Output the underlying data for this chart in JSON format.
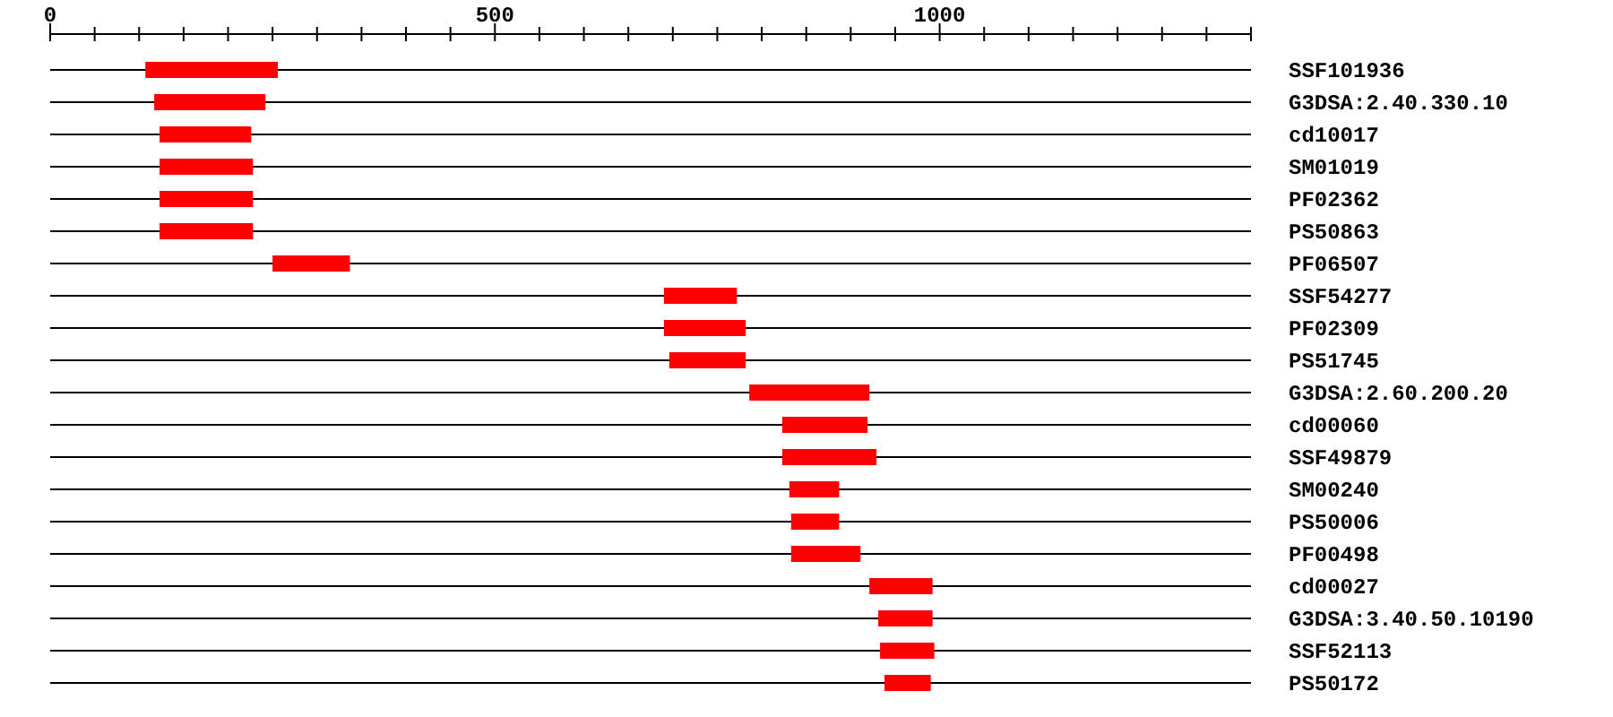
{
  "chart_data": {
    "type": "bar",
    "orientation": "horizontal",
    "color": "#ff0000",
    "grid": "y",
    "categories": [
      "SSF101936",
      "G3DSA:2.40.330.10",
      "cd10017",
      "SM01019",
      "PF02362",
      "PS50863",
      "PF06507",
      "SSF54277",
      "PF02309",
      "PS51745",
      "G3DSA:2.60.200.20",
      "cd00060",
      "SSF49879",
      "SM00240",
      "PS50006",
      "PF00498",
      "cd00027",
      "G3DSA:3.40.50.10190",
      "SSF52113",
      "PS50172"
    ],
    "base": [
      107,
      117,
      123,
      123,
      123,
      123,
      250,
      690,
      690,
      696,
      786,
      823,
      823,
      831,
      833,
      833,
      921,
      931,
      933,
      938
    ],
    "values": [
      149,
      125,
      103,
      105,
      105,
      105,
      87,
      82,
      92,
      86,
      135,
      96,
      106,
      56,
      54,
      78,
      71,
      61,
      61,
      52
    ],
    "xlim": [
      0,
      1350
    ],
    "xticks": [
      0,
      {
        "value": 50,
        "label": null
      },
      {
        "value": 100,
        "label": null
      },
      {
        "value": 150,
        "label": null
      },
      {
        "value": 200,
        "label": null
      },
      {
        "value": 250,
        "label": null
      },
      {
        "value": 300,
        "label": null
      },
      {
        "value": 350,
        "label": null
      },
      {
        "value": 400,
        "label": null
      },
      {
        "value": 450,
        "label": null
      },
      500,
      {
        "value": 550,
        "label": null
      },
      {
        "value": 600,
        "label": null
      },
      {
        "value": 650,
        "label": null
      },
      {
        "value": 700,
        "label": null
      },
      {
        "value": 750,
        "label": null
      },
      {
        "value": 800,
        "label": null
      },
      {
        "value": 850,
        "label": null
      },
      {
        "value": 900,
        "label": null
      },
      {
        "value": 950,
        "label": null
      },
      1000,
      {
        "value": 1050,
        "label": null
      },
      {
        "value": 1100,
        "label": null
      },
      {
        "value": 1150,
        "label": null
      },
      {
        "value": 1200,
        "label": null
      },
      {
        "value": 1250,
        "label": null
      },
      {
        "value": 1300,
        "label": null
      },
      {
        "value": 1350,
        "label": null
      }
    ]
  }
}
